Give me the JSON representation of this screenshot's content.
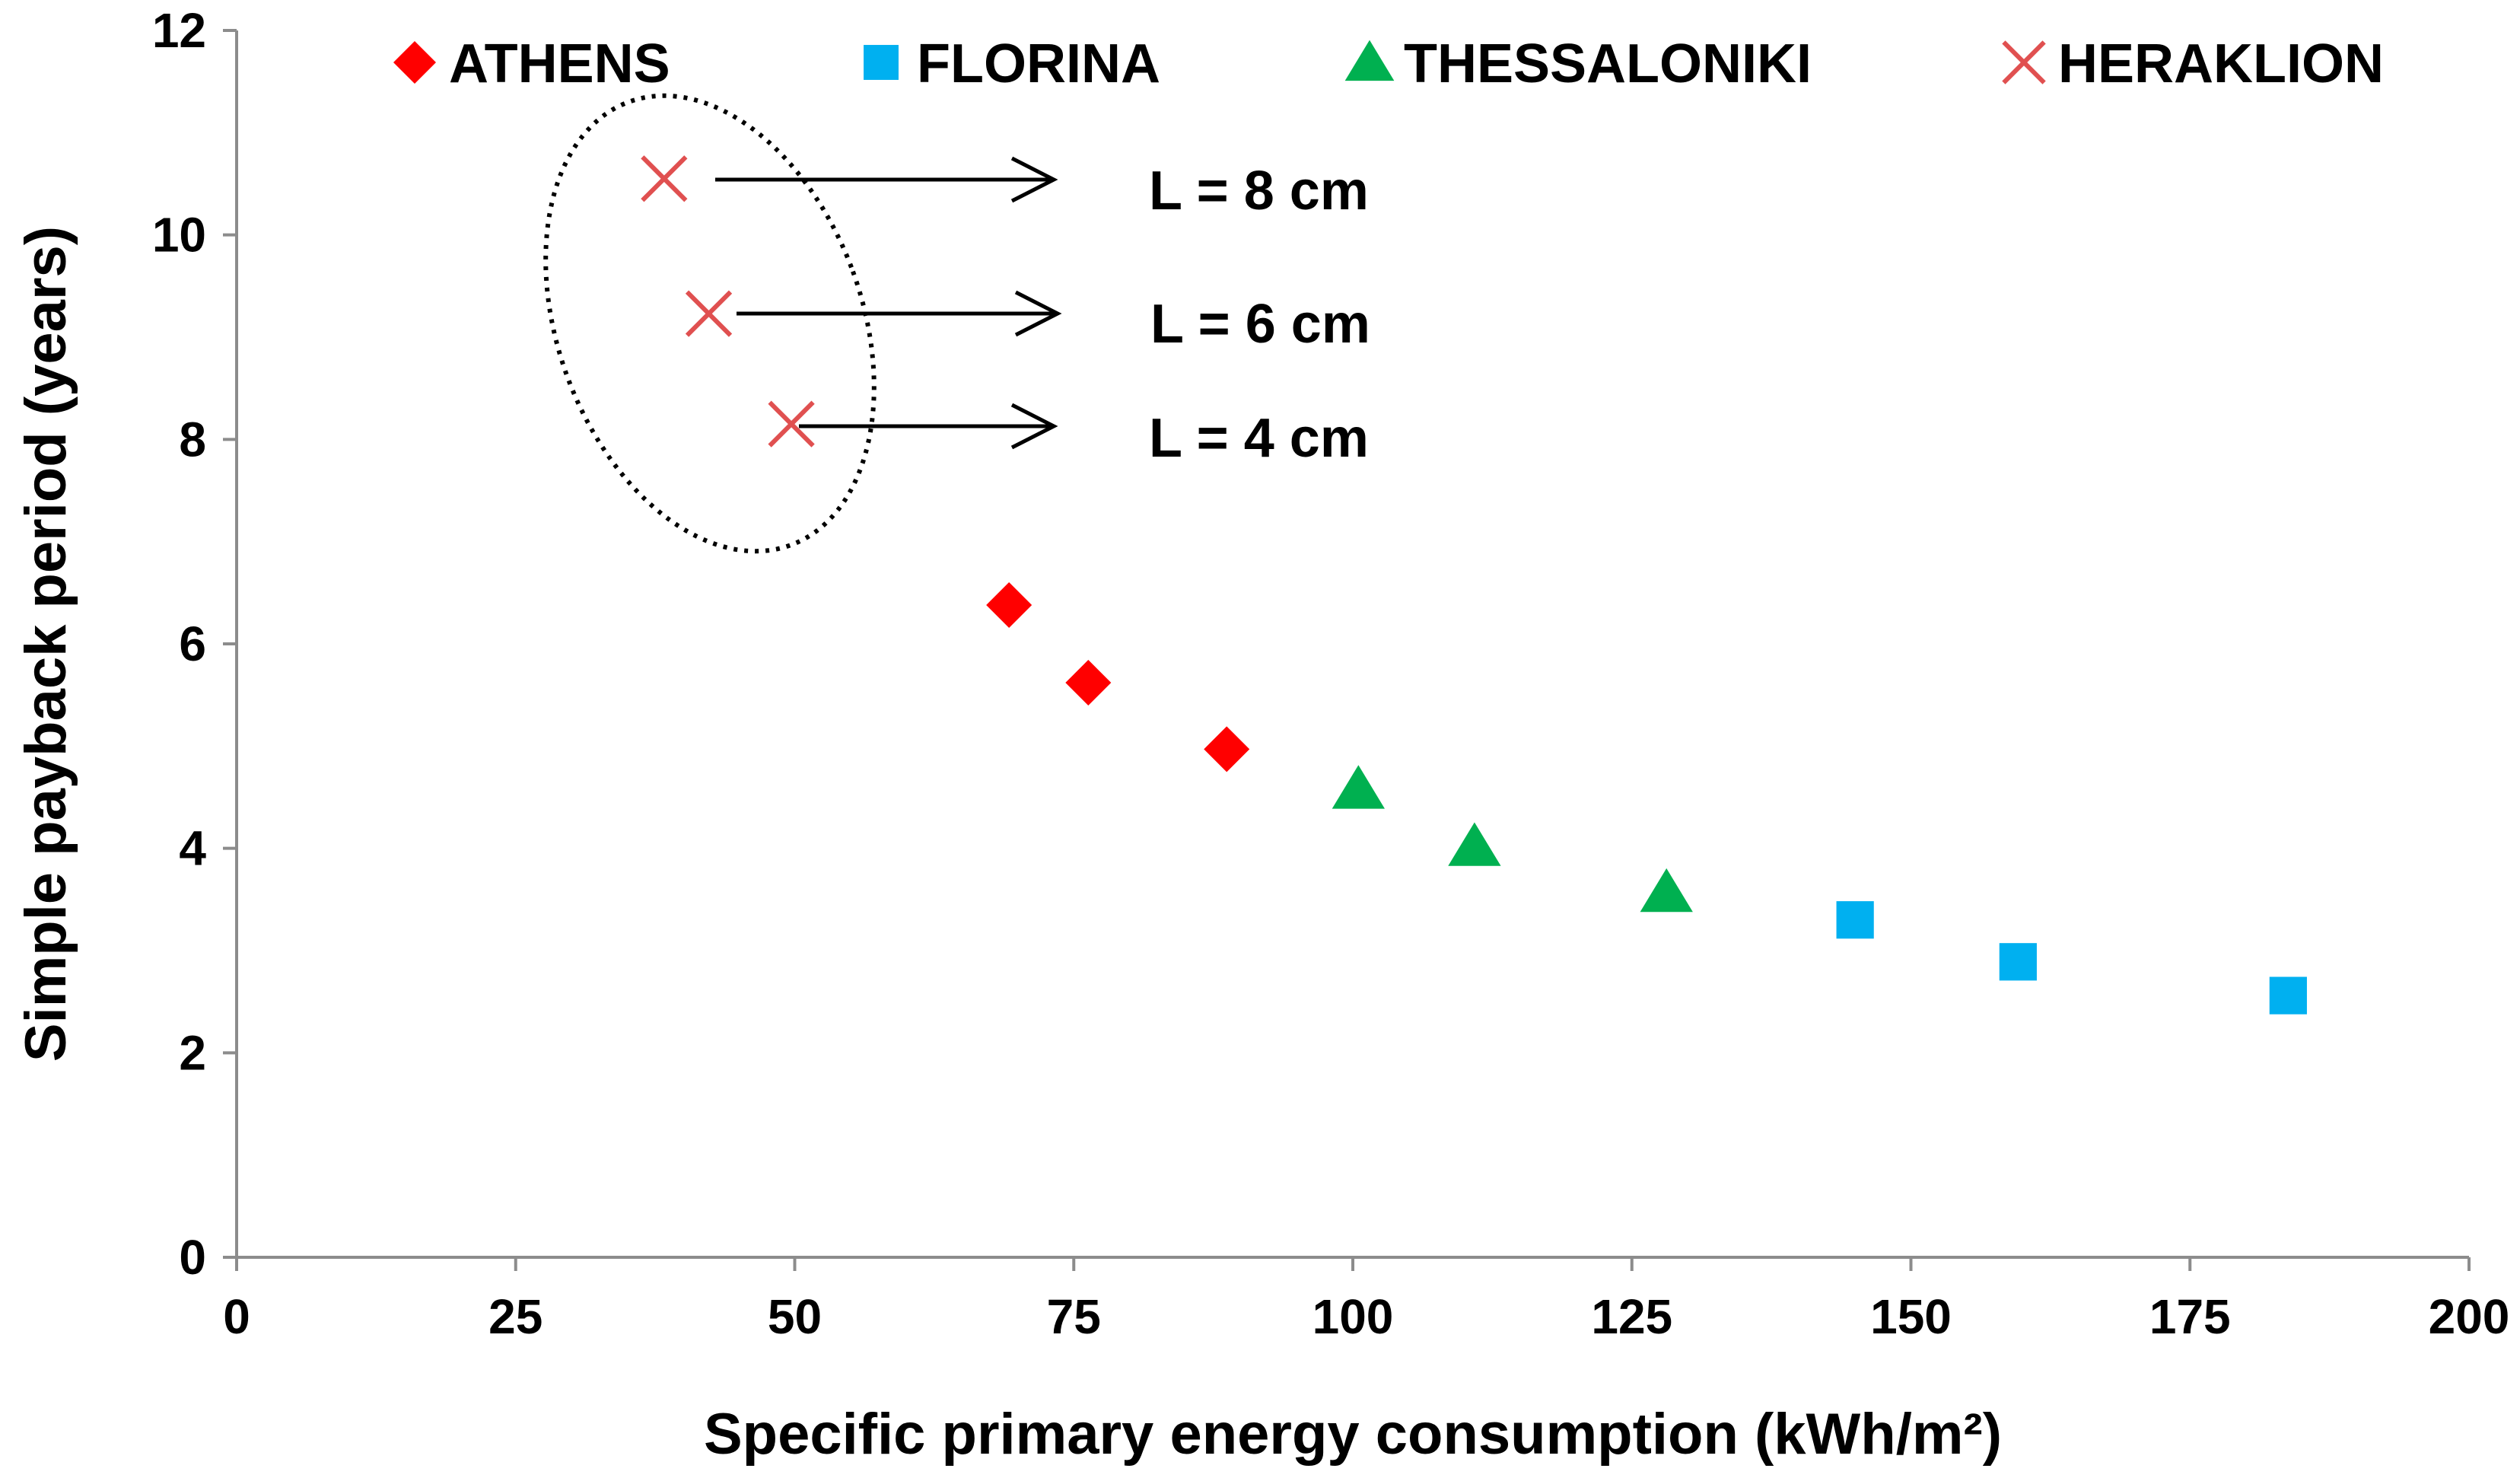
{
  "chart_data": {
    "type": "scatter",
    "title": "",
    "xlabel": "Specific primary energy consumption (kWh/m²)",
    "ylabel": "Simple payback period (years)",
    "xlim": [
      0,
      200
    ],
    "ylim": [
      0,
      12
    ],
    "xticks": [
      0,
      25,
      50,
      75,
      100,
      125,
      150,
      175,
      200
    ],
    "yticks": [
      0,
      2,
      4,
      6,
      8,
      10,
      12
    ],
    "grid": false,
    "legend_position": "top",
    "series": [
      {
        "name": "ATHENS",
        "marker": "diamond",
        "color": "#ff0000",
        "x": [
          69.2,
          76.3,
          88.7
        ],
        "y": [
          6.38,
          5.62,
          4.97
        ]
      },
      {
        "name": "FLORINA",
        "marker": "square",
        "color": "#00b0f0",
        "x": [
          145.0,
          159.6,
          183.8
        ],
        "y": [
          3.3,
          2.89,
          2.56
        ]
      },
      {
        "name": "THESSALONIKI",
        "marker": "triangle",
        "color": "#00b050",
        "x": [
          100.5,
          110.9,
          128.1
        ],
        "y": [
          4.58,
          4.02,
          3.57
        ]
      },
      {
        "name": "HERAKLION",
        "marker": "x",
        "color": "#e05050",
        "x": [
          38.3,
          42.3,
          49.7
        ],
        "y": [
          10.55,
          9.23,
          8.15
        ]
      }
    ],
    "annotations": [
      {
        "text": "L = 8 cm",
        "x": 38.3,
        "y": 10.55
      },
      {
        "text": "L = 6 cm",
        "x": 42.3,
        "y": 9.23
      },
      {
        "text": "L = 4 cm",
        "x": 49.7,
        "y": 8.15
      }
    ]
  }
}
